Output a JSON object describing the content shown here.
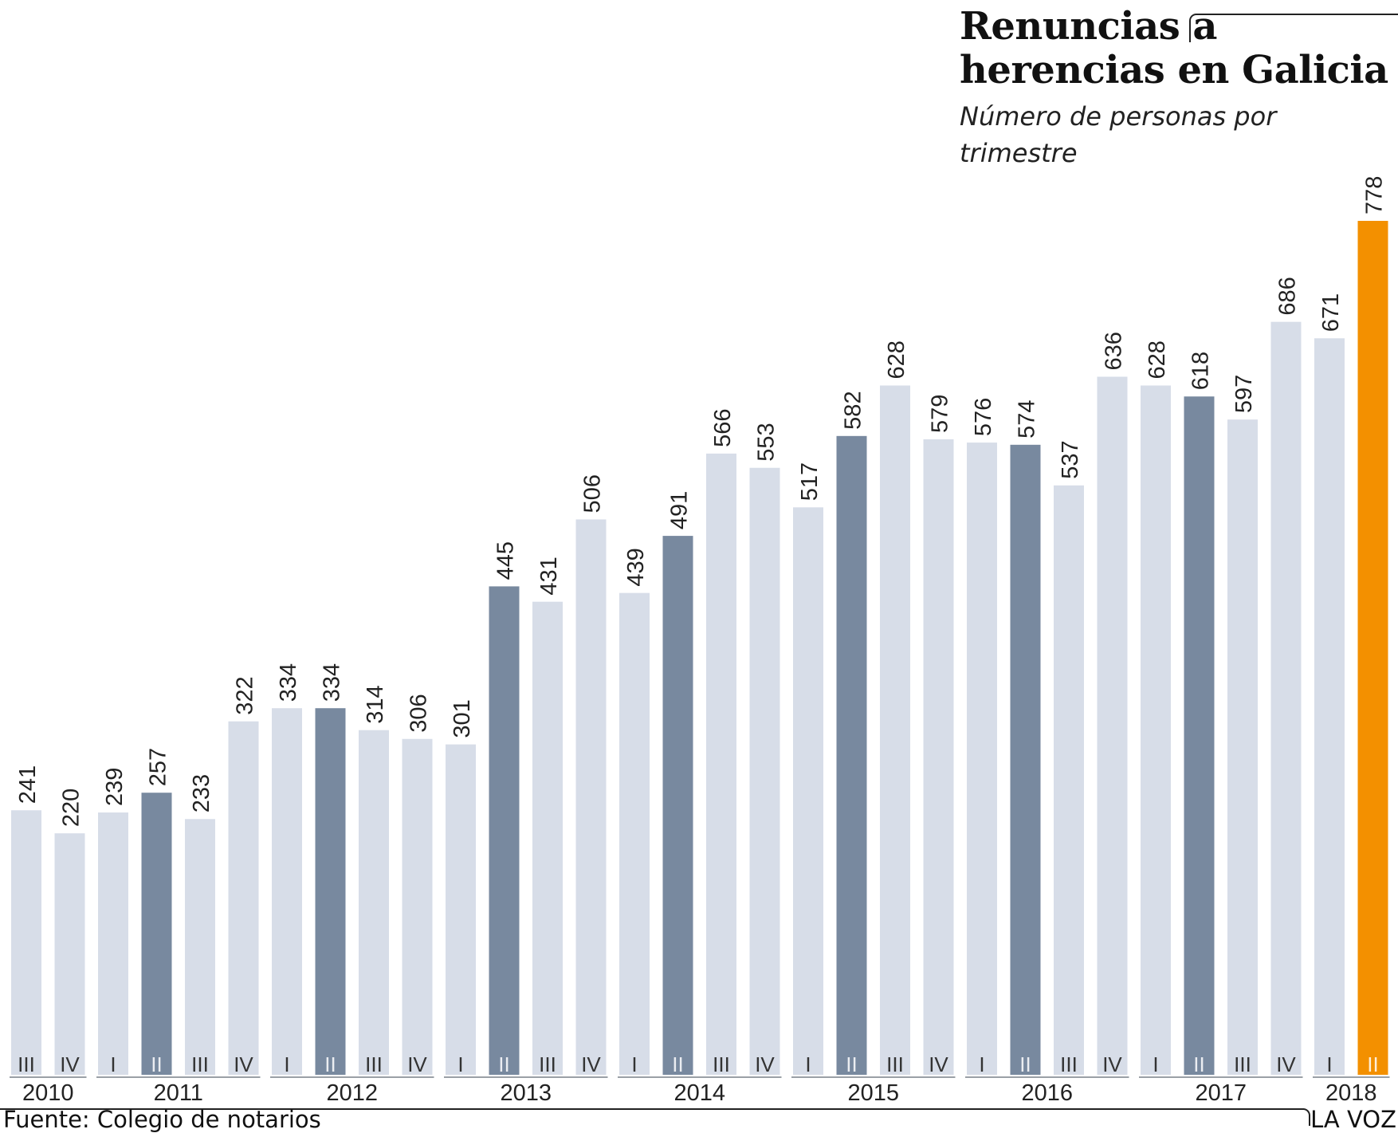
{
  "title": "Renuncias a herencias en Galicia",
  "subtitle": "Número de personas por trimestre",
  "source": "Fuente: Colegio de notarios",
  "brand": "LA VOZ",
  "colors": {
    "default_bar": "#d7dde8",
    "second_quarter_bar": "#78899f",
    "latest_bar": "#f39000",
    "value_label": "#222222",
    "quarter_label": "#333333",
    "axis_rule": "#9aa0a6"
  },
  "chart_data": {
    "type": "bar",
    "title": "Renuncias a herencias en Galicia",
    "subtitle": "Número de personas por trimestre",
    "categories": [
      "III",
      "IV",
      "I",
      "II",
      "III",
      "IV",
      "I",
      "II",
      "III",
      "IV",
      "I",
      "II",
      "III",
      "IV",
      "I",
      "II",
      "III",
      "IV",
      "I",
      "II",
      "III",
      "IV",
      "I",
      "II",
      "III",
      "IV",
      "I",
      "II",
      "III",
      "IV",
      "I",
      "II"
    ],
    "years": [
      "2010",
      "2010",
      "2011",
      "2011",
      "2011",
      "2011",
      "2012",
      "2012",
      "2012",
      "2012",
      "2013",
      "2013",
      "2013",
      "2013",
      "2014",
      "2014",
      "2014",
      "2014",
      "2015",
      "2015",
      "2015",
      "2015",
      "2016",
      "2016",
      "2016",
      "2016",
      "2017",
      "2017",
      "2017",
      "2017",
      "2018",
      "2018"
    ],
    "values": [
      241,
      220,
      239,
      257,
      233,
      322,
      334,
      334,
      314,
      306,
      301,
      445,
      431,
      506,
      439,
      491,
      566,
      553,
      517,
      582,
      628,
      579,
      576,
      574,
      537,
      636,
      628,
      618,
      597,
      686,
      671,
      778
    ],
    "year_groups": [
      {
        "label": "2010",
        "count": 2
      },
      {
        "label": "2011",
        "count": 4
      },
      {
        "label": "2012",
        "count": 4
      },
      {
        "label": "2013",
        "count": 4
      },
      {
        "label": "2014",
        "count": 4
      },
      {
        "label": "2015",
        "count": 4
      },
      {
        "label": "2016",
        "count": 4
      },
      {
        "label": "2017",
        "count": 4
      },
      {
        "label": "2018",
        "count": 2
      }
    ],
    "highlight": {
      "quarter": "II",
      "latest": "2018-II"
    },
    "ylim": [
      0,
      778
    ],
    "grid": false,
    "legend": "none"
  }
}
